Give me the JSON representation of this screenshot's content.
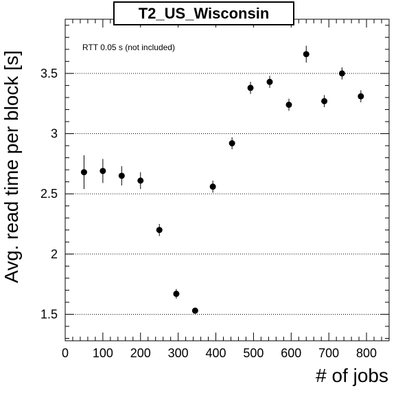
{
  "chart_data": {
    "type": "scatter",
    "title": "T2_US_Wisconsin",
    "xlabel": "# of jobs",
    "ylabel": "Avg. read time per block [s]",
    "annotation": "RTT 0.05 s (not included)",
    "xlim": [
      0,
      860
    ],
    "ylim": [
      1.28,
      3.95
    ],
    "xticks": [
      0,
      100,
      200,
      300,
      400,
      500,
      600,
      700,
      800
    ],
    "yticks": [
      1.5,
      2,
      2.5,
      3,
      3.5
    ],
    "ytick_labels": [
      "1.5",
      "2",
      "2.5",
      "3",
      "3.5"
    ],
    "grid": "horizontal dotted",
    "points": [
      {
        "x": 50,
        "y": 2.68,
        "yerr": 0.14
      },
      {
        "x": 100,
        "y": 2.69,
        "yerr": 0.1
      },
      {
        "x": 150,
        "y": 2.65,
        "yerr": 0.08
      },
      {
        "x": 200,
        "y": 2.61,
        "yerr": 0.07
      },
      {
        "x": 250,
        "y": 2.2,
        "yerr": 0.05
      },
      {
        "x": 295,
        "y": 1.67,
        "yerr": 0.04
      },
      {
        "x": 345,
        "y": 1.53,
        "yerr": 0.02
      },
      {
        "x": 392,
        "y": 2.56,
        "yerr": 0.05
      },
      {
        "x": 443,
        "y": 2.92,
        "yerr": 0.05
      },
      {
        "x": 492,
        "y": 3.38,
        "yerr": 0.05
      },
      {
        "x": 543,
        "y": 3.43,
        "yerr": 0.05
      },
      {
        "x": 594,
        "y": 3.24,
        "yerr": 0.05
      },
      {
        "x": 640,
        "y": 3.66,
        "yerr": 0.07
      },
      {
        "x": 688,
        "y": 3.27,
        "yerr": 0.05
      },
      {
        "x": 735,
        "y": 3.5,
        "yerr": 0.05
      },
      {
        "x": 785,
        "y": 3.31,
        "yerr": 0.05
      }
    ]
  }
}
